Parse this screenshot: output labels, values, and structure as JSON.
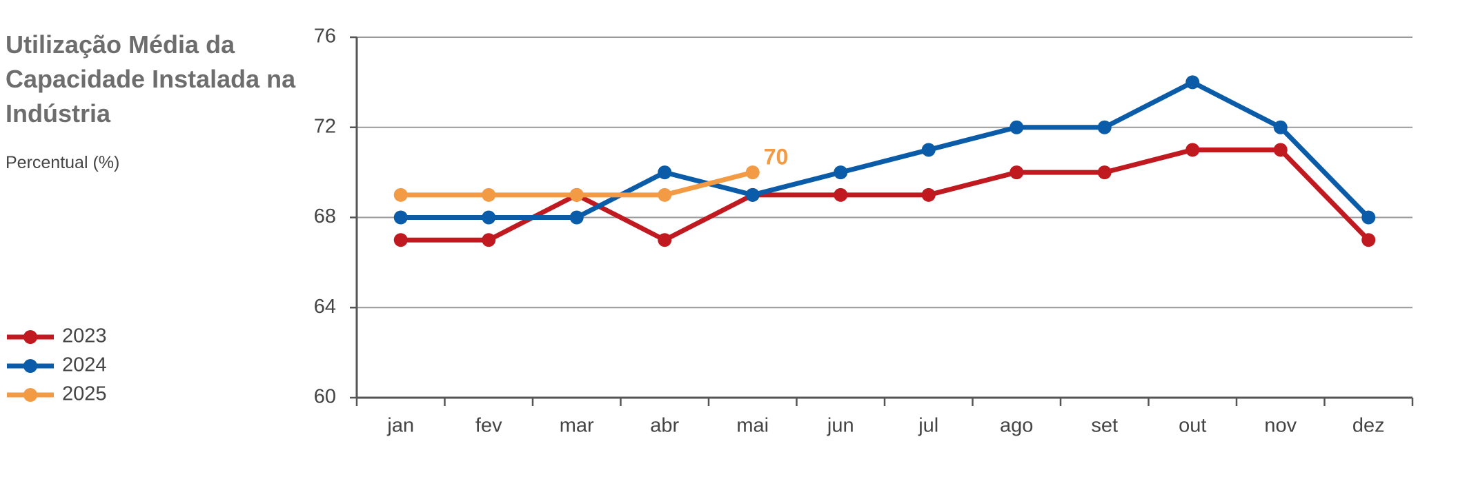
{
  "chart_data": {
    "type": "line",
    "title": "Utilização Média da Capacidade Instalada na Indústria",
    "subtitle": "Percentual (%)",
    "categories": [
      "jan",
      "fev",
      "mar",
      "abr",
      "mai",
      "jun",
      "jul",
      "ago",
      "set",
      "out",
      "nov",
      "dez"
    ],
    "series": [
      {
        "name": "2023",
        "color": "#c0191f",
        "values": [
          67,
          67,
          69,
          67,
          69,
          69,
          69,
          70,
          70,
          71,
          71,
          67
        ]
      },
      {
        "name": "2024",
        "color": "#0a5ba8",
        "values": [
          68,
          68,
          68,
          70,
          69,
          70,
          71,
          72,
          72,
          74,
          72,
          68
        ]
      },
      {
        "name": "2025",
        "color": "#f39a45",
        "values": [
          69,
          69,
          69,
          69,
          70,
          null,
          null,
          null,
          null,
          null,
          null,
          null
        ]
      }
    ],
    "ylim": [
      60,
      76
    ],
    "yticks": [
      60,
      64,
      68,
      72,
      76
    ],
    "grid": true,
    "legend": "left"
  }
}
